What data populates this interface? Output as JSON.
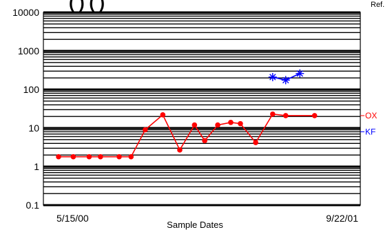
{
  "title_visible_fragment": "(   )                        (   )",
  "ref_note": "Ref.",
  "chart_data": {
    "type": "line",
    "y_scale": "log",
    "ylim": [
      0.1,
      10000
    ],
    "y_ticks": [
      "0.1",
      "1",
      "10",
      "100",
      "1000",
      "10000"
    ],
    "x_tick_labels": [
      "5/15/00",
      "9/22/01"
    ],
    "xlabel": "Sample Dates",
    "ylabel": "",
    "grid": true,
    "series": [
      {
        "name": "OX",
        "color": "#ff0000",
        "marker": "circle",
        "x": [
          "5/15/00",
          "6/10/00",
          "7/8/00",
          "7/28/00",
          "8/30/00",
          "9/20/00",
          "10/15/00",
          "11/15/00",
          "12/15/00",
          "1/10/01",
          "1/28/01",
          "2/20/01",
          "3/15/01",
          "4/1/01",
          "4/28/01",
          "5/28/01",
          "6/20/01",
          "7/15/01",
          "8/10/01",
          "9/22/01"
        ],
        "values": [
          1.8,
          1.8,
          1.8,
          1.8,
          1.8,
          1.8,
          9,
          22,
          2.7,
          12,
          4.7,
          12,
          14,
          13,
          4.2,
          23,
          21,
          null,
          21,
          null
        ]
      },
      {
        "name": "KF",
        "color": "#0000ff",
        "marker": "asterisk",
        "x": [
          "5/28/01",
          "6/20/01",
          "7/15/01"
        ],
        "values": [
          210,
          175,
          260
        ]
      }
    ],
    "series_labels": [
      "OX",
      "KF"
    ]
  }
}
